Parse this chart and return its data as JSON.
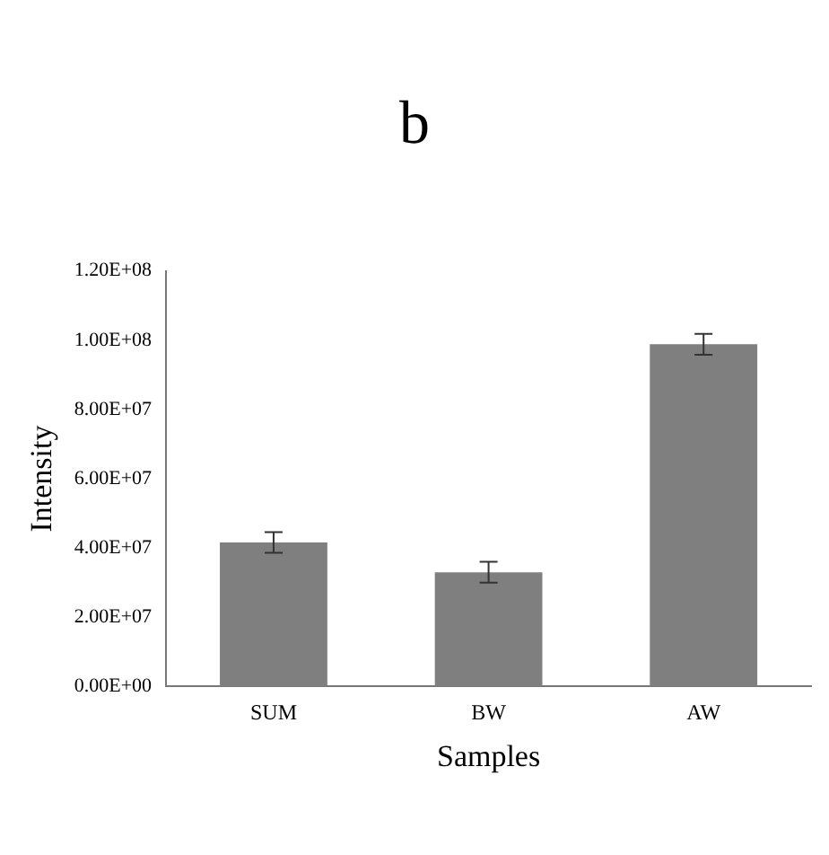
{
  "chart_data": {
    "type": "bar",
    "title": "b",
    "xlabel": "Samples",
    "ylabel": "Intensity",
    "categories": [
      "SUM",
      "BW",
      "AW"
    ],
    "series": [
      {
        "color": "#7f7f7f",
        "values": [
          41600000,
          33000000,
          98800000
        ],
        "errors": [
          3000000,
          3000000,
          3000000
        ]
      }
    ],
    "ylim": [
      0,
      120000000
    ],
    "yticks": [
      {
        "value": 0,
        "label": "0.00E+00"
      },
      {
        "value": 20000000,
        "label": "2.00E+07"
      },
      {
        "value": 40000000,
        "label": "4.00E+07"
      },
      {
        "value": 60000000,
        "label": "6.00E+07"
      },
      {
        "value": 80000000,
        "label": "8.00E+07"
      },
      {
        "value": 100000000,
        "label": "1.00E+08"
      },
      {
        "value": 120000000,
        "label": "1.20E+08"
      }
    ],
    "grid": false,
    "legend": false
  }
}
